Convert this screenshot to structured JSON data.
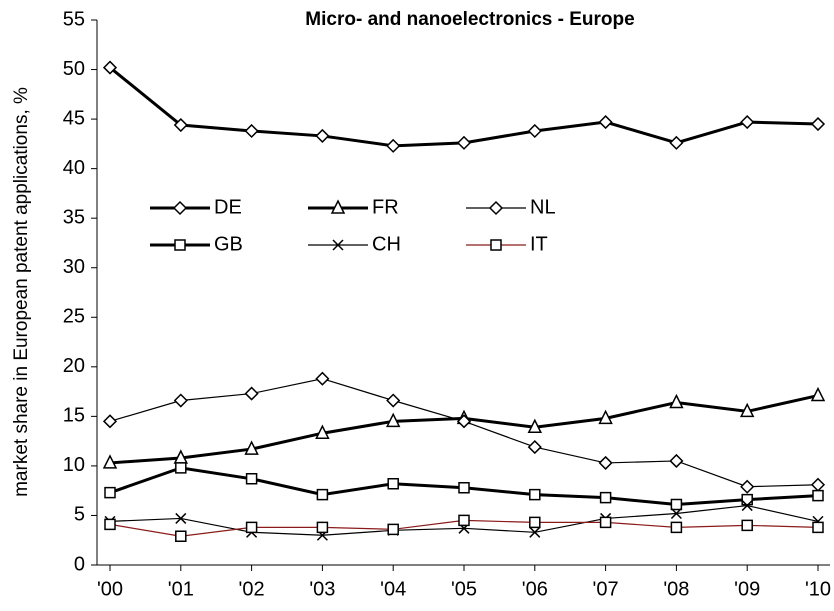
{
  "chart_data": {
    "type": "line",
    "title": "Micro- and nanoelectronics - Europe",
    "y_label": "market share in European patent applications, %",
    "categories": [
      "'00",
      "'01",
      "'02",
      "'03",
      "'04",
      "'05",
      "'06",
      "'07",
      "'08",
      "'09",
      "'10"
    ],
    "ylim": [
      0,
      55
    ],
    "yticks": [
      0,
      5,
      10,
      15,
      20,
      25,
      30,
      35,
      40,
      45,
      50,
      55
    ],
    "series": [
      {
        "name": "DE",
        "color": "#000000",
        "marker": "diamond",
        "line_width": 3,
        "values": [
          50.2,
          44.4,
          43.8,
          43.3,
          42.3,
          42.6,
          43.8,
          44.7,
          42.6,
          44.7,
          44.5
        ]
      },
      {
        "name": "FR",
        "color": "#000000",
        "marker": "triangle",
        "line_width": 3,
        "values": [
          10.3,
          10.8,
          11.7,
          13.3,
          14.5,
          14.8,
          13.9,
          14.8,
          16.4,
          15.5,
          17.1
        ]
      },
      {
        "name": "NL",
        "color": "#000000",
        "marker": "diamond",
        "line_width": 1.2,
        "values": [
          14.5,
          16.6,
          17.3,
          18.8,
          16.6,
          14.5,
          11.9,
          10.3,
          10.5,
          7.9,
          8.1
        ]
      },
      {
        "name": "GB",
        "color": "#000000",
        "marker": "square",
        "line_width": 3,
        "values": [
          7.3,
          9.8,
          8.7,
          7.1,
          8.2,
          7.8,
          7.1,
          6.8,
          6.1,
          6.6,
          7.0
        ]
      },
      {
        "name": "CH",
        "color": "#000000",
        "marker": "x",
        "line_width": 1.2,
        "values": [
          4.4,
          4.7,
          3.3,
          3.0,
          3.5,
          3.7,
          3.3,
          4.7,
          5.2,
          6.0,
          4.4
        ]
      },
      {
        "name": "IT",
        "color": "#8b1a1a",
        "marker": "square",
        "line_width": 1.2,
        "values": [
          4.1,
          2.9,
          3.8,
          3.8,
          3.6,
          4.5,
          4.3,
          4.3,
          3.8,
          4.0,
          3.8
        ]
      }
    ]
  }
}
